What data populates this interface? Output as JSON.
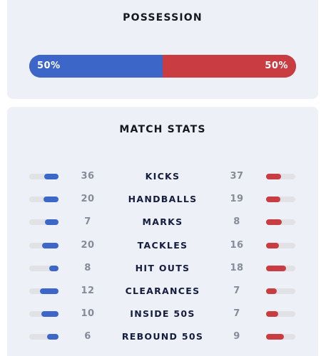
{
  "possession": {
    "title": "POSSESSION",
    "home_label": "50%",
    "away_label": "50%",
    "home_fraction": 0.5,
    "colors": {
      "home": "#3d66c9",
      "away": "#c93d42"
    }
  },
  "match_stats": {
    "title": "MATCH STATS",
    "rows": [
      {
        "label": "KICKS",
        "home": "36",
        "away": "37"
      },
      {
        "label": "HANDBALLS",
        "home": "20",
        "away": "19"
      },
      {
        "label": "MARKS",
        "home": "7",
        "away": "8"
      },
      {
        "label": "TACKLES",
        "home": "20",
        "away": "16"
      },
      {
        "label": "HIT OUTS",
        "home": "8",
        "away": "18"
      },
      {
        "label": "CLEARANCES",
        "home": "12",
        "away": "7"
      },
      {
        "label": "INSIDE 50S",
        "home": "10",
        "away": "7"
      },
      {
        "label": "REBOUND 50S",
        "home": "6",
        "away": "9"
      }
    ]
  }
}
